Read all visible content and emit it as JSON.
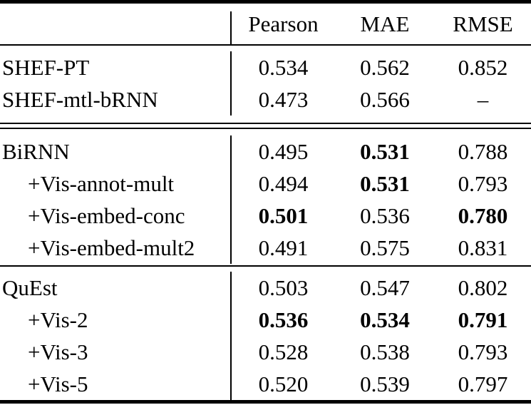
{
  "colors": {
    "text": "#000000",
    "background": "#ffffff",
    "rule": "#000000"
  },
  "header": {
    "columns": [
      "Pearson",
      "MAE",
      "RMSE"
    ]
  },
  "sections": [
    {
      "rows": [
        {
          "label": "SHEF-PT",
          "values": [
            {
              "text": "0.534",
              "style": "normal"
            },
            {
              "text": "0.562",
              "style": "normal"
            },
            {
              "text": "0.852",
              "style": "normal"
            }
          ]
        },
        {
          "label": "SHEF-mtl-bRNN",
          "values": [
            {
              "text": "0.473",
              "style": "normal"
            },
            {
              "text": "0.566",
              "style": "normal"
            },
            {
              "text": "–",
              "style": "normal"
            }
          ]
        }
      ]
    },
    {
      "rows": [
        {
          "label": "BiRNN",
          "values": [
            {
              "text": "0.495",
              "style": "normal"
            },
            {
              "text": "0.531",
              "style": "bold"
            },
            {
              "text": "0.788",
              "style": "normal"
            }
          ]
        },
        {
          "label": "+Vis-annot-mult",
          "values": [
            {
              "text": "0.494",
              "style": "normal"
            },
            {
              "text": "0.531",
              "style": "bold"
            },
            {
              "text": "0.793",
              "style": "normal"
            }
          ]
        },
        {
          "label": "+Vis-embed-conc",
          "values": [
            {
              "text": "0.501",
              "style": "bold"
            },
            {
              "text": "0.536",
              "style": "normal"
            },
            {
              "text": "0.780",
              "style": "bold"
            }
          ]
        },
        {
          "label": "+Vis-embed-mult2",
          "values": [
            {
              "text": "0.491",
              "style": "normal"
            },
            {
              "text": "0.575",
              "style": "normal"
            },
            {
              "text": "0.831",
              "style": "normal"
            }
          ]
        }
      ]
    },
    {
      "rows": [
        {
          "label": "QuEst",
          "values": [
            {
              "text": "0.503",
              "style": "normal"
            },
            {
              "text": "0.547",
              "style": "normal"
            },
            {
              "text": "0.802",
              "style": "normal"
            }
          ]
        },
        {
          "label": "+Vis-2",
          "values": [
            {
              "text": "0.536",
              "style": "bold"
            },
            {
              "text": "0.534",
              "style": "bold"
            },
            {
              "text": "0.791",
              "style": "bold"
            }
          ]
        },
        {
          "label": "+Vis-3",
          "values": [
            {
              "text": "0.528",
              "style": "normal"
            },
            {
              "text": "0.538",
              "style": "normal"
            },
            {
              "text": "0.793",
              "style": "normal"
            }
          ]
        },
        {
          "label": "+Vis-5",
          "values": [
            {
              "text": "0.520",
              "style": "normal"
            },
            {
              "text": "0.539",
              "style": "normal"
            },
            {
              "text": "0.797",
              "style": "normal"
            }
          ]
        }
      ]
    }
  ]
}
